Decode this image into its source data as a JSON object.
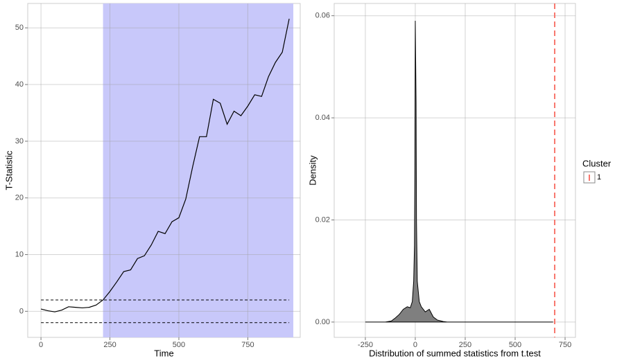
{
  "chart_data": [
    {
      "type": "line",
      "x_label": "Time",
      "y_label": "T-Statistic",
      "x": [
        0,
        25,
        50,
        75,
        100,
        125,
        150,
        175,
        200,
        225,
        250,
        275,
        300,
        325,
        350,
        375,
        400,
        425,
        450,
        475,
        500,
        525,
        550,
        575,
        600,
        625,
        650,
        675,
        700,
        725,
        750,
        775,
        800,
        825,
        850,
        875,
        900
      ],
      "values": [
        0.4,
        0.1,
        -0.1,
        0.2,
        0.8,
        0.7,
        0.6,
        0.7,
        1.1,
        2.0,
        3.5,
        5.2,
        7.0,
        7.3,
        9.3,
        9.8,
        11.7,
        14.1,
        13.7,
        15.8,
        16.5,
        19.8,
        25.5,
        30.8,
        30.8,
        37.4,
        36.7,
        33.0,
        35.3,
        34.5,
        36.2,
        38.2,
        37.9,
        41.4,
        43.9,
        45.7,
        51.6
      ],
      "color": "#000000",
      "shade": [
        225,
        915
      ],
      "shade_color": "#c8c8fa",
      "hlines": [
        2,
        -2
      ],
      "xlim": [
        -48,
        940
      ],
      "ylim": [
        -4.6,
        54.3
      ],
      "xticks": [
        0,
        250,
        500,
        750
      ],
      "yticks": [
        0,
        10,
        20,
        30,
        40,
        50
      ],
      "grid": true
    },
    {
      "type": "area",
      "x_label": "Distribution of summed statistics from t.test",
      "y_label": "Density",
      "x": [
        -250,
        -150,
        -120,
        -100,
        -80,
        -60,
        -40,
        -25,
        -15,
        -8,
        -4,
        -2,
        0,
        2,
        4,
        6,
        10,
        20,
        30,
        50,
        70,
        90,
        110,
        140,
        160,
        690
      ],
      "values": [
        0,
        0,
        0.0002,
        0.0008,
        0.0015,
        0.0025,
        0.003,
        0.0028,
        0.004,
        0.008,
        0.015,
        0.03,
        0.059,
        0.051,
        0.043,
        0.02,
        0.008,
        0.004,
        0.003,
        0.002,
        0.0025,
        0.001,
        0.0004,
        0.0001,
        0,
        0
      ],
      "color": "#000000",
      "fill": "#7f7f7f",
      "legend_title": "Cluster",
      "reference_lines": [
        {
          "name": "1",
          "value": 698,
          "color": "#f8766d"
        }
      ],
      "xlim": [
        -406,
        802
      ],
      "ylim": [
        -0.003,
        0.0624
      ],
      "xticks": [
        -250,
        0,
        250,
        500,
        750
      ],
      "yticks": [
        {
          "value": 0,
          "label": "0.00"
        },
        {
          "value": 0.02,
          "label": "0.02"
        },
        {
          "value": 0.04,
          "label": "0.04"
        },
        {
          "value": 0.06,
          "label": "0.06"
        }
      ],
      "grid": true
    }
  ]
}
